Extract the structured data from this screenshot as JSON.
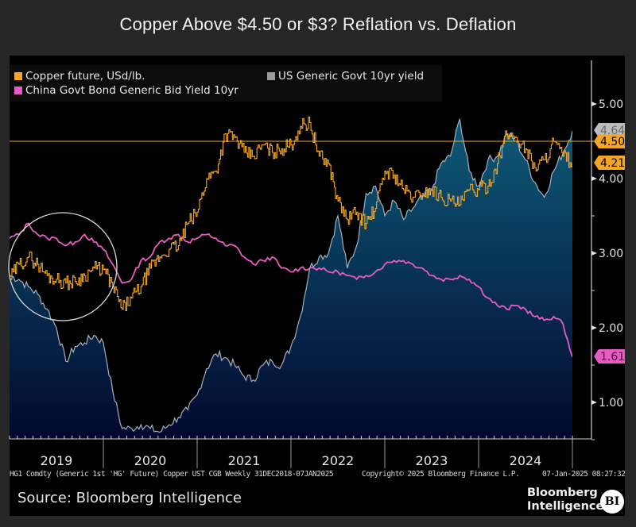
{
  "title": "Copper Above $4.50 or $3? Reflation vs. Deflation",
  "legend": {
    "copper": "Copper future, USd/lb.",
    "us_yield": "US Generic Govt 10yr yield",
    "china_yield": "China Govt Bond Generic Bid Yield 10yr"
  },
  "footer": {
    "tickers": "HG1 Comdty (Generic 1st 'HG' Future) Copper UST CGB  Weekly 31DEC2018-07JAN2025",
    "copyright": "Copyright© 2025 Bloomberg Finance L.P.",
    "timestamp": "07-Jan-2025 08:27:32",
    "source": "Source: Bloomberg Intelligence",
    "brand_line1": "Bloomberg",
    "brand_line2": "Intelligence",
    "brand_badge": "BI"
  },
  "colors": {
    "copper": "#f5a623",
    "us_yield_line": "#9fb3c2",
    "us_fill_top": "#0e5a78",
    "us_fill_bottom": "#02082e",
    "china": "#e85bc3",
    "reference_line": "#f5a623",
    "label_gray": "#bdbdbd"
  },
  "chart_data": {
    "type": "line",
    "title": "Copper Above $4.50 or $3? Reflation vs. Deflation",
    "xlabel": "",
    "ylabel": "",
    "x_range": [
      "2019-01",
      "2025-01"
    ],
    "ylim": [
      0.5,
      5.4
    ],
    "y_ticks": [
      1.0,
      2.0,
      3.0,
      4.0,
      5.0
    ],
    "y_tick_labels": [
      "1.00",
      "2.00",
      "3.00",
      "4.00",
      "5.00"
    ],
    "x_tick_labels": [
      "2019",
      "2020",
      "2021",
      "2022",
      "2023",
      "2024"
    ],
    "grid": false,
    "legend_position": "top-left",
    "reference_line": {
      "value": 4.5,
      "label": "4.50"
    },
    "last_value_labels": [
      {
        "series": "US Generic Govt 10yr yield",
        "value": "4.64"
      },
      {
        "series": "Copper future, USd/lb.",
        "value": "4.21"
      },
      {
        "series": "China Govt Bond Generic Bid Yield 10yr",
        "value": "1.61"
      }
    ],
    "annotation": "circle highlighting 2019 period",
    "x": [
      2019.0,
      2019.1,
      2019.2,
      2019.3,
      2019.4,
      2019.5,
      2019.6,
      2019.7,
      2019.8,
      2019.9,
      2020.0,
      2020.1,
      2020.2,
      2020.3,
      2020.4,
      2020.5,
      2020.6,
      2020.7,
      2020.8,
      2020.9,
      2021.0,
      2021.1,
      2021.2,
      2021.3,
      2021.4,
      2021.5,
      2021.6,
      2021.7,
      2021.8,
      2021.9,
      2022.0,
      2022.1,
      2022.2,
      2022.3,
      2022.4,
      2022.5,
      2022.6,
      2022.7,
      2022.8,
      2022.9,
      2023.0,
      2023.1,
      2023.2,
      2023.3,
      2023.4,
      2023.5,
      2023.6,
      2023.7,
      2023.8,
      2023.9,
      2024.0,
      2024.1,
      2024.2,
      2024.3,
      2024.4,
      2024.5,
      2024.6,
      2024.7,
      2024.8,
      2024.9,
      2025.0
    ],
    "series": [
      {
        "name": "Copper future, USd/lb.",
        "values": [
          2.65,
          2.85,
          2.95,
          2.85,
          2.7,
          2.65,
          2.6,
          2.62,
          2.7,
          2.8,
          2.78,
          2.55,
          2.25,
          2.4,
          2.55,
          2.8,
          2.95,
          3.05,
          3.1,
          3.4,
          3.55,
          4.0,
          4.1,
          4.6,
          4.55,
          4.35,
          4.3,
          4.45,
          4.35,
          4.4,
          4.45,
          4.7,
          4.75,
          4.3,
          4.2,
          3.7,
          3.45,
          3.55,
          3.4,
          3.6,
          4.1,
          4.05,
          3.85,
          3.75,
          3.8,
          3.85,
          3.75,
          3.7,
          3.65,
          3.85,
          3.85,
          3.9,
          4.2,
          4.6,
          4.55,
          4.4,
          4.15,
          4.25,
          4.5,
          4.3,
          4.21
        ]
      },
      {
        "name": "US Generic Govt 10yr yield",
        "values": [
          2.7,
          2.65,
          2.55,
          2.45,
          2.25,
          2.0,
          1.55,
          1.75,
          1.8,
          1.9,
          1.8,
          1.15,
          0.65,
          0.65,
          0.7,
          0.65,
          0.6,
          0.7,
          0.8,
          0.9,
          1.1,
          1.45,
          1.65,
          1.6,
          1.5,
          1.35,
          1.3,
          1.5,
          1.55,
          1.5,
          1.75,
          2.15,
          2.8,
          2.95,
          3.0,
          3.5,
          2.8,
          3.1,
          3.8,
          3.9,
          3.5,
          3.7,
          3.45,
          3.6,
          3.75,
          3.85,
          4.2,
          4.3,
          4.8,
          4.1,
          3.9,
          4.25,
          4.3,
          4.6,
          4.5,
          4.25,
          3.95,
          3.75,
          4.1,
          4.35,
          4.64
        ]
      },
      {
        "name": "China Govt Bond Generic Bid Yield 10yr",
        "values": [
          3.2,
          3.25,
          3.4,
          3.25,
          3.2,
          3.2,
          3.1,
          3.15,
          3.25,
          3.15,
          3.05,
          2.85,
          2.6,
          2.65,
          2.9,
          2.95,
          3.15,
          3.2,
          3.25,
          3.15,
          3.2,
          3.25,
          3.2,
          3.1,
          3.1,
          2.95,
          2.85,
          2.9,
          2.95,
          2.8,
          2.75,
          2.8,
          2.8,
          2.8,
          2.75,
          2.75,
          2.7,
          2.65,
          2.7,
          2.75,
          2.85,
          2.9,
          2.9,
          2.85,
          2.8,
          2.7,
          2.65,
          2.65,
          2.7,
          2.65,
          2.55,
          2.4,
          2.3,
          2.25,
          2.3,
          2.25,
          2.15,
          2.1,
          2.15,
          2.05,
          1.61
        ]
      }
    ]
  }
}
